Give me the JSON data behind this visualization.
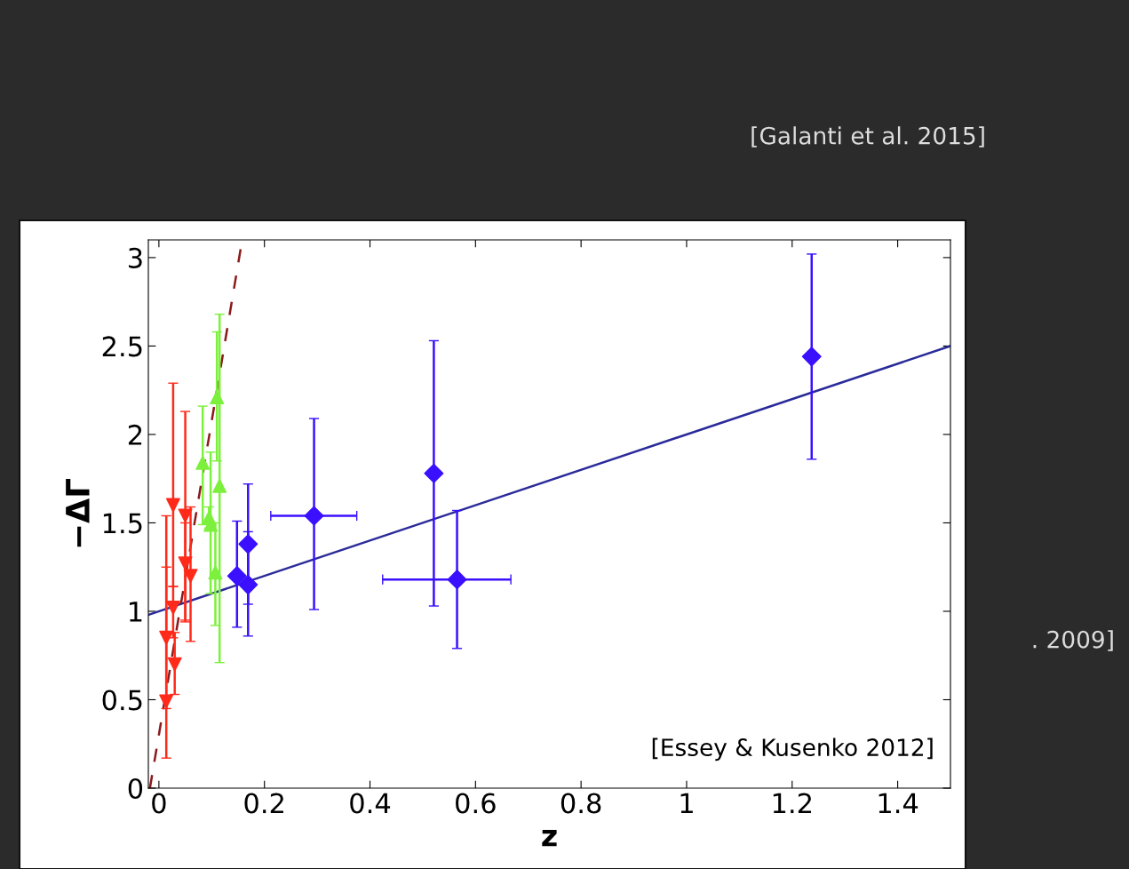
{
  "chart_data": {
    "type": "scatter",
    "xlabel": "z",
    "ylabel": "−ΔΓ",
    "xlim": [
      -0.02,
      1.5
    ],
    "ylim": [
      0,
      3.1
    ],
    "xticks": [
      0,
      0.2,
      0.4,
      0.6,
      0.8,
      1,
      1.2,
      1.4
    ],
    "yticks": [
      0,
      0.5,
      1,
      1.5,
      2,
      2.5,
      3
    ],
    "grid": false,
    "legend": false,
    "annotations": [
      "[Essey & Kusenko 2012]",
      "[Galanti et al. 2015]",
      ". 2009]"
    ],
    "series": [
      {
        "type": "line",
        "color": "#2a2a9a",
        "line_style": "solid",
        "marker": "none",
        "x": [
          -0.02,
          1.5
        ],
        "values": [
          0.98,
          2.5
        ]
      },
      {
        "type": "line",
        "color": "#8b1a1a",
        "line_style": "dashed",
        "marker": "none",
        "x": [
          -0.017,
          0.155
        ],
        "values": [
          0,
          3.05
        ]
      },
      {
        "color": "#ff2a1a",
        "marker": "triangle_down",
        "x": [
          0.014,
          0.014,
          0.027,
          0.027,
          0.03,
          0.05,
          0.05,
          0.06
        ],
        "values": [
          0.49,
          0.85,
          1.6,
          1.02,
          0.7,
          1.54,
          1.27,
          1.2
        ],
        "errors": [
          [
            0.17,
            1.54
          ],
          [
            0.45,
            1.25
          ],
          [
            1.14,
            2.29
          ],
          [
            0.85,
            1.14
          ],
          [
            0.53,
            0.88
          ],
          [
            0.94,
            2.13
          ],
          [
            0.95,
            1.5
          ],
          [
            0.83,
            1.59
          ]
        ]
      },
      {
        "color": "#7cf03c",
        "marker": "triangle",
        "x": [
          0.083,
          0.095,
          0.098,
          0.107,
          0.11,
          0.115
        ],
        "values": [
          1.84,
          1.53,
          1.49,
          1.22,
          2.21,
          1.71
        ],
        "errors": [
          [
            1.49,
            2.16
          ],
          [
            1.47,
            1.59
          ],
          [
            1.1,
            1.9
          ],
          [
            0.92,
            1.5
          ],
          [
            1.85,
            2.58
          ],
          [
            0.71,
            2.68
          ]
        ]
      },
      {
        "color": "#3a10ff",
        "marker": "diamond",
        "x": [
          0.148,
          0.169,
          0.169,
          0.294,
          0.521,
          0.565,
          1.237
        ],
        "values": [
          1.2,
          1.38,
          1.15,
          1.54,
          1.78,
          1.18,
          2.44
        ],
        "errors": [
          [
            0.91,
            1.51
          ],
          [
            1.04,
            1.72
          ],
          [
            0.86,
            1.45
          ],
          [
            1.01,
            2.09
          ],
          [
            1.03,
            2.53
          ],
          [
            0.79,
            1.57
          ],
          [
            1.86,
            3.02
          ]
        ],
        "xerrors": [
          null,
          null,
          null,
          [
            0.212,
            0.375
          ],
          null,
          [
            0.424,
            0.667
          ],
          null
        ]
      }
    ]
  }
}
